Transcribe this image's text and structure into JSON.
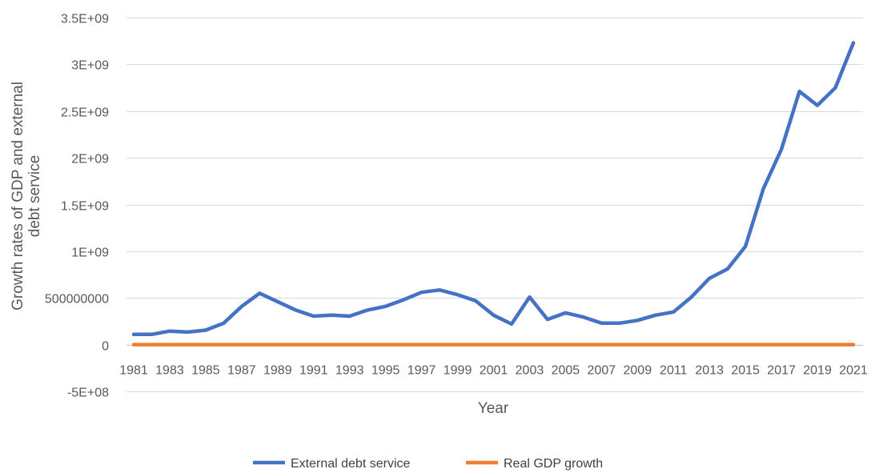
{
  "chart_data": {
    "type": "line",
    "xlabel": "Year",
    "ylabel": "Growth rates of GDP and external debt service",
    "ylabel_lines": [
      "Growth rates of GDP and external",
      "debt service"
    ],
    "ylim": [
      -500000000,
      3500000000
    ],
    "y_ticks": [
      -500000000,
      0,
      500000000,
      1000000000,
      1500000000,
      2000000000,
      2500000000,
      3000000000,
      3500000000
    ],
    "y_tick_labels": [
      "-5E+08",
      "0",
      "500000000",
      "1E+09",
      "1.5E+09",
      "2E+09",
      "2.5E+09",
      "3E+09",
      "3.5E+09"
    ],
    "x": [
      1981,
      1982,
      1983,
      1984,
      1985,
      1986,
      1987,
      1988,
      1989,
      1990,
      1991,
      1992,
      1993,
      1994,
      1995,
      1996,
      1997,
      1998,
      1999,
      2000,
      2001,
      2002,
      2003,
      2004,
      2005,
      2006,
      2007,
      2008,
      2009,
      2010,
      2011,
      2012,
      2013,
      2014,
      2015,
      2016,
      2017,
      2018,
      2019,
      2020,
      2021
    ],
    "x_tick_labels": [
      "1981",
      "1983",
      "1985",
      "1987",
      "1989",
      "1991",
      "1993",
      "1995",
      "1997",
      "1999",
      "2001",
      "2003",
      "2005",
      "2007",
      "2009",
      "2011",
      "2013",
      "2015",
      "2017",
      "2019",
      "2021"
    ],
    "grid": true,
    "legend_position": "bottom",
    "series": [
      {
        "name": "External debt service",
        "color": "#4472c4",
        "values": [
          110000000,
          110000000,
          145000000,
          135000000,
          155000000,
          230000000,
          410000000,
          550000000,
          460000000,
          370000000,
          305000000,
          315000000,
          305000000,
          370000000,
          410000000,
          480000000,
          560000000,
          585000000,
          535000000,
          470000000,
          315000000,
          220000000,
          510000000,
          270000000,
          340000000,
          295000000,
          230000000,
          230000000,
          260000000,
          315000000,
          350000000,
          510000000,
          710000000,
          810000000,
          1050000000,
          1670000000,
          2090000000,
          2710000000,
          2560000000,
          2750000000,
          3230000000
        ]
      },
      {
        "name": "Real GDP growth",
        "color": "#ed7d31",
        "values": [
          3,
          2,
          -1,
          1,
          6,
          2,
          2,
          7,
          6,
          12,
          1,
          0,
          2,
          -1,
          3,
          4,
          3,
          3,
          1,
          5,
          6,
          2,
          10,
          10,
          7,
          6,
          7,
          7,
          8,
          8,
          5,
          4,
          5,
          6,
          3,
          -2,
          1,
          2,
          2,
          -2,
          4
        ]
      }
    ]
  }
}
